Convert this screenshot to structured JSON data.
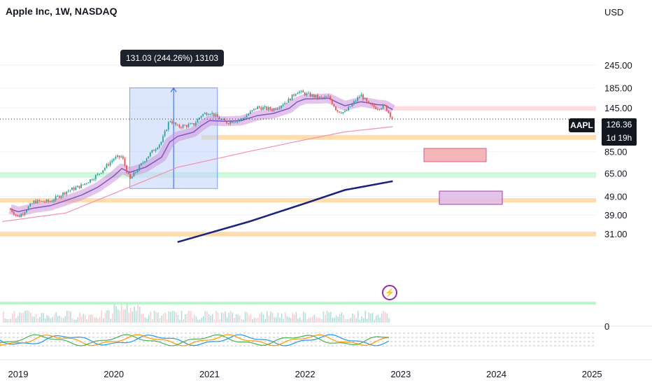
{
  "header": {
    "title": "Apple Inc, 1W, NASDAQ"
  },
  "axis": {
    "currency": "USD",
    "y_labels": [
      "245.00",
      "185.00",
      "145.00",
      "85.00",
      "65.00",
      "49.00",
      "39.00",
      "31.00",
      "0"
    ],
    "x_labels": [
      "2019",
      "2020",
      "2021",
      "2022",
      "2023",
      "2024",
      "2025"
    ]
  },
  "measure": {
    "label": "131.03 (244.26%) 13103"
  },
  "price_tag": {
    "symbol": "AAPL",
    "price": "126.36",
    "countdown": "1d 19h"
  },
  "icons": {
    "alert": "lightning-bolt-icon"
  },
  "colors": {
    "up": "#26a69a",
    "down": "#ef5350",
    "band": "#ce93d8",
    "long_ma": "#1a237e",
    "mid_ma": "#f48fb1",
    "zone_orange": "#ffcc80",
    "zone_green": "#b9f6ca",
    "zone_red": "#ffcdd2",
    "measure": "#2962ff",
    "purple_box": "#e1bee7",
    "red_box": "#ef9a9a"
  },
  "chart_data": {
    "type": "line",
    "title": "Apple Inc, 1W, NASDAQ",
    "ylabel": "USD",
    "scale": "log",
    "ylim": [
      28,
      260
    ],
    "xlim": [
      "2018-11",
      "2025-06"
    ],
    "series": [
      {
        "name": "AAPL",
        "points": [
          [
            "2018-12",
            42
          ],
          [
            "2019-01",
            38
          ],
          [
            "2019-03",
            46
          ],
          [
            "2019-05",
            46
          ],
          [
            "2019-07",
            52
          ],
          [
            "2019-09",
            56
          ],
          [
            "2019-11",
            64
          ],
          [
            "2020-01",
            78
          ],
          [
            "2020-02",
            80
          ],
          [
            "2020-03",
            60
          ],
          [
            "2020-05",
            78
          ],
          [
            "2020-07",
            96
          ],
          [
            "2020-08",
            125
          ],
          [
            "2020-09",
            115
          ],
          [
            "2020-11",
            118
          ],
          [
            "2020-12",
            133
          ],
          [
            "2021-01",
            138
          ],
          [
            "2021-03",
            121
          ],
          [
            "2021-05",
            126
          ],
          [
            "2021-07",
            146
          ],
          [
            "2021-09",
            142
          ],
          [
            "2021-11",
            160
          ],
          [
            "2021-12",
            178
          ],
          [
            "2022-01",
            172
          ],
          [
            "2022-03",
            163
          ],
          [
            "2022-04",
            165
          ],
          [
            "2022-05",
            140
          ],
          [
            "2022-06",
            137
          ],
          [
            "2022-08",
            170
          ],
          [
            "2022-09",
            150
          ],
          [
            "2022-10",
            145
          ],
          [
            "2022-11",
            148
          ],
          [
            "2022-12",
            126.36
          ]
        ]
      },
      {
        "name": "",
        "points": [
          [
            "2020-09",
            28
          ],
          [
            "2021-06",
            36
          ],
          [
            "2022-01",
            45
          ],
          [
            "2022-06",
            53
          ],
          [
            "2022-12",
            59
          ]
        ]
      },
      {
        "name": "",
        "points": [
          [
            "2018-11",
            36
          ],
          [
            "2019-07",
            40
          ],
          [
            "2020-03",
            55
          ],
          [
            "2020-09",
            70
          ],
          [
            "2021-06",
            85
          ],
          [
            "2022-01",
            98
          ],
          [
            "2022-06",
            108
          ],
          [
            "2022-12",
            115
          ]
        ]
      }
    ],
    "zones": [
      {
        "from": 98,
        "to": 104
      },
      {
        "from": 61.5,
        "to": 66
      },
      {
        "from": 45.5,
        "to": 48
      },
      {
        "from": 30,
        "to": 31.8
      },
      {
        "from": 140,
        "to": 148
      }
    ],
    "measure": {
      "from": 53.97,
      "to": 185,
      "change": 131.03,
      "percent": 244.26,
      "start": "2020-03",
      "end": "2021-02"
    }
  }
}
